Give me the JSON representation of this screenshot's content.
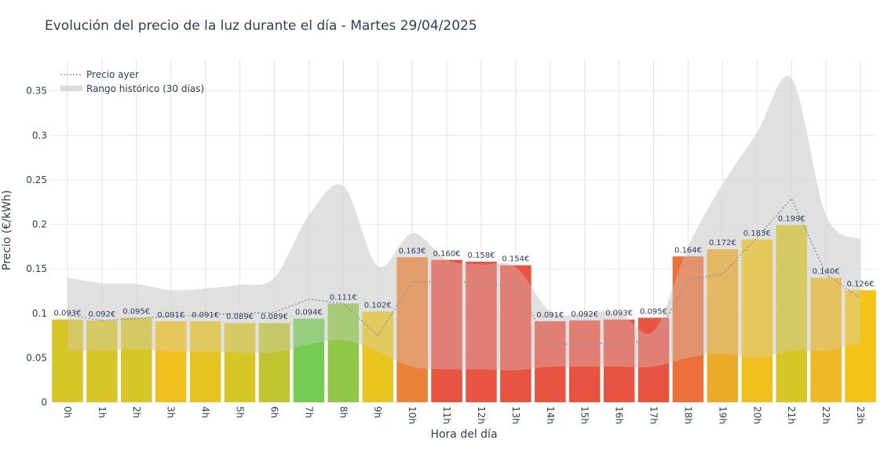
{
  "chart_data": {
    "type": "bar",
    "title": "Evolución del precio de la luz durante el día - Martes 29/04/2025",
    "xlabel": "Hora del día",
    "ylabel": "Precio (€/kWh)",
    "ylim": [
      0,
      0.385
    ],
    "yticks": [
      {
        "value": 0,
        "label": "0"
      },
      {
        "value": 0.05,
        "label": "0.05"
      },
      {
        "value": 0.1,
        "label": "0.1"
      },
      {
        "value": 0.15,
        "label": "0.15"
      },
      {
        "value": 0.2,
        "label": "0.2"
      },
      {
        "value": 0.25,
        "label": "0.25"
      },
      {
        "value": 0.3,
        "label": "0.3"
      },
      {
        "value": 0.35,
        "label": "0.35"
      }
    ],
    "grid": true,
    "legend_position": "top-left",
    "categories": [
      "0h",
      "1h",
      "2h",
      "3h",
      "4h",
      "5h",
      "6h",
      "7h",
      "8h",
      "9h",
      "10h",
      "11h",
      "12h",
      "13h",
      "14h",
      "15h",
      "16h",
      "17h",
      "18h",
      "19h",
      "20h",
      "21h",
      "22h",
      "23h"
    ],
    "values": [
      0.093,
      0.092,
      0.095,
      0.091,
      0.091,
      0.089,
      0.089,
      0.094,
      0.111,
      0.102,
      0.163,
      0.16,
      0.158,
      0.154,
      0.091,
      0.092,
      0.093,
      0.095,
      0.164,
      0.172,
      0.183,
      0.199,
      0.14,
      0.126
    ],
    "value_labels": [
      "0.093€",
      "0.092€",
      "0.095€",
      "0.091€",
      "0.091€",
      "0.089€",
      "0.089€",
      "0.094€",
      "0.111€",
      "0.102€",
      "0.163€",
      "0.160€",
      "0.158€",
      "0.154€",
      "0.091€",
      "0.092€",
      "0.093€",
      "0.095€",
      "0.164€",
      "0.172€",
      "0.183€",
      "0.199€",
      "0.140€",
      "0.126€"
    ],
    "bar_colors": [
      "#d6c21c",
      "#d6c21c",
      "#d6c21c",
      "#efbe12",
      "#e6c016",
      "#d6c21c",
      "#bcc124",
      "#6fc94a",
      "#8cc43e",
      "#e9c214",
      "#eb7a2d",
      "#e84a38",
      "#e84a38",
      "#e84a38",
      "#e84a38",
      "#e84a38",
      "#e84a38",
      "#e84a38",
      "#eb6830",
      "#eba51e",
      "#efbe12",
      "#d6c21c",
      "#efb418",
      "#f3c00c"
    ],
    "series": [
      {
        "name": "Precio ayer",
        "style": "dotted-line",
        "color": "#999999",
        "values": [
          0.098,
          0.092,
          0.094,
          0.097,
          0.098,
          0.1,
          0.101,
          0.116,
          0.111,
          0.075,
          0.135,
          0.136,
          0.134,
          0.13,
          0.065,
          0.066,
          0.067,
          0.069,
          0.138,
          0.144,
          0.185,
          0.229,
          0.144,
          0.117
        ]
      },
      {
        "name": "Rango histórico (30 días)",
        "style": "band",
        "color": "#d3d3d3",
        "upper": [
          0.14,
          0.134,
          0.133,
          0.126,
          0.128,
          0.132,
          0.14,
          0.21,
          0.243,
          0.153,
          0.19,
          0.16,
          0.155,
          0.152,
          0.102,
          0.1,
          0.101,
          0.08,
          0.175,
          0.245,
          0.303,
          0.364,
          0.21,
          0.183
        ],
        "lower": [
          0.058,
          0.058,
          0.06,
          0.057,
          0.057,
          0.056,
          0.056,
          0.065,
          0.07,
          0.057,
          0.04,
          0.037,
          0.037,
          0.036,
          0.04,
          0.04,
          0.04,
          0.04,
          0.05,
          0.055,
          0.05,
          0.058,
          0.058,
          0.067
        ]
      }
    ]
  }
}
